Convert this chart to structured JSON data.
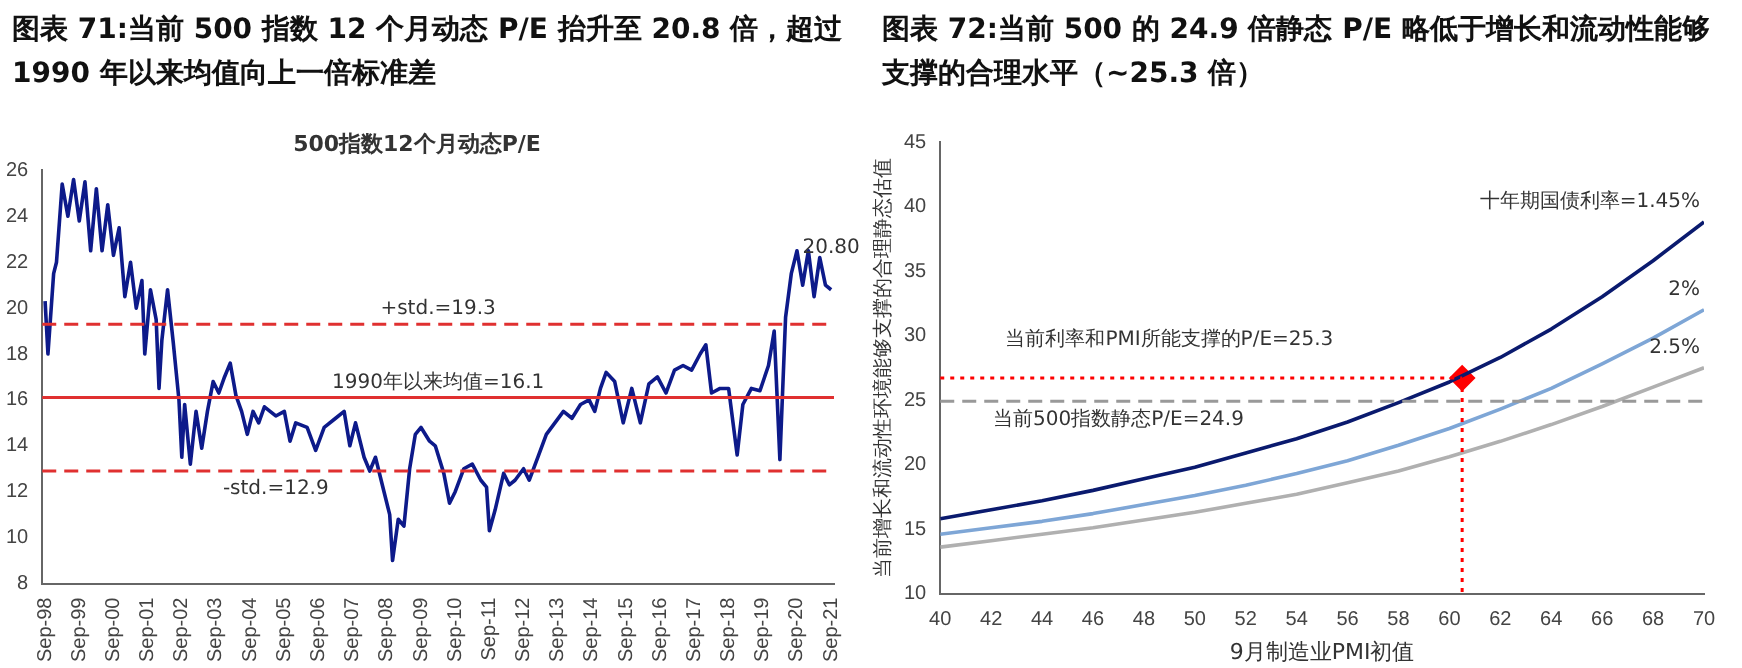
{
  "chart_data": [
    {
      "type": "line",
      "title": "图表 71:当前 500 指数 12 个月动态 P/E 抬升至 20.8 倍，超过 1990 年以来均值向上一倍标准差",
      "subtitle": "500指数12个月动态P/E",
      "xlim": [
        "1998-08",
        "2021-10"
      ],
      "xticks": [
        {
          "value": "1998-09",
          "label": "Sep-98"
        },
        {
          "value": "1999-09",
          "label": "Sep-99"
        },
        {
          "value": "2000-09",
          "label": "Sep-00"
        },
        {
          "value": "2001-09",
          "label": "Sep-01"
        },
        {
          "value": "2002-09",
          "label": "Sep-02"
        },
        {
          "value": "2003-09",
          "label": "Sep-03"
        },
        {
          "value": "2004-09",
          "label": "Sep-04"
        },
        {
          "value": "2005-09",
          "label": "Sep-05"
        },
        {
          "value": "2006-09",
          "label": "Sep-06"
        },
        {
          "value": "2007-09",
          "label": "Sep-07"
        },
        {
          "value": "2008-09",
          "label": "Sep-08"
        },
        {
          "value": "2009-09",
          "label": "Sep-09"
        },
        {
          "value": "2010-09",
          "label": "Sep-10"
        },
        {
          "value": "2011-09",
          "label": "Sep-11"
        },
        {
          "value": "2012-09",
          "label": "Sep-12"
        },
        {
          "value": "2013-09",
          "label": "Sep-13"
        },
        {
          "value": "2014-09",
          "label": "Sep-14"
        },
        {
          "value": "2015-09",
          "label": "Sep-15"
        },
        {
          "value": "2016-09",
          "label": "Sep-16"
        },
        {
          "value": "2017-09",
          "label": "Sep-17"
        },
        {
          "value": "2018-09",
          "label": "Sep-18"
        },
        {
          "value": "2019-09",
          "label": "Sep-19"
        },
        {
          "value": "2020-09",
          "label": "Sep-20"
        },
        {
          "value": "2021-09",
          "label": "Sep-21"
        }
      ],
      "ylim": [
        8,
        26
      ],
      "yticks": [
        8,
        10,
        12,
        14,
        16,
        18,
        20,
        22,
        24,
        26
      ],
      "grid": false,
      "legend": false,
      "marker": "none",
      "line_style": "solid",
      "series": [
        {
          "color": "#0d1a8a",
          "x": [
            "1998-09",
            "1998-10",
            "1998-12",
            "1999-01",
            "1999-03",
            "1999-05",
            "1999-07",
            "1999-09",
            "1999-11",
            "2000-01",
            "2000-03",
            "2000-05",
            "2000-07",
            "2000-09",
            "2000-11",
            "2001-01",
            "2001-03",
            "2001-05",
            "2001-07",
            "2001-08",
            "2001-10",
            "2001-12",
            "2002-01",
            "2002-02",
            "2002-04",
            "2002-06",
            "2002-08",
            "2002-09",
            "2002-10",
            "2002-12",
            "2003-02",
            "2003-04",
            "2003-06",
            "2003-08",
            "2003-10",
            "2003-12",
            "2004-02",
            "2004-04",
            "2004-06",
            "2004-08",
            "2004-10",
            "2004-12",
            "2005-02",
            "2005-06",
            "2005-09",
            "2005-11",
            "2006-01",
            "2006-05",
            "2006-08",
            "2006-11",
            "2007-03",
            "2007-06",
            "2007-08",
            "2007-10",
            "2008-01",
            "2008-03",
            "2008-05",
            "2008-08",
            "2008-10",
            "2008-11",
            "2009-01",
            "2009-03",
            "2009-05",
            "2009-07",
            "2009-09",
            "2009-12",
            "2010-02",
            "2010-05",
            "2010-07",
            "2010-09",
            "2010-12",
            "2011-03",
            "2011-06",
            "2011-08",
            "2011-09",
            "2011-11",
            "2012-02",
            "2012-04",
            "2012-06",
            "2012-09",
            "2012-11",
            "2013-02",
            "2013-05",
            "2013-08",
            "2013-11",
            "2014-02",
            "2014-05",
            "2014-08",
            "2014-10",
            "2014-12",
            "2015-02",
            "2015-05",
            "2015-08",
            "2015-11",
            "2016-02",
            "2016-05",
            "2016-08",
            "2016-11",
            "2017-02",
            "2017-05",
            "2017-08",
            "2017-11",
            "2018-01",
            "2018-03",
            "2018-06",
            "2018-09",
            "2018-12",
            "2019-02",
            "2019-05",
            "2019-08",
            "2019-11",
            "2020-01",
            "2020-03",
            "2020-05",
            "2020-07",
            "2020-09",
            "2020-11",
            "2021-01",
            "2021-03",
            "2021-05",
            "2021-07",
            "2021-09"
          ],
          "values": [
            20.3,
            18.0,
            21.5,
            22.0,
            25.4,
            24.0,
            25.6,
            23.8,
            25.5,
            22.5,
            25.2,
            22.5,
            24.5,
            22.3,
            23.5,
            20.5,
            22.0,
            20.0,
            21.2,
            18.0,
            20.8,
            19.5,
            16.5,
            18.6,
            20.8,
            18.5,
            16.0,
            13.5,
            15.8,
            13.2,
            15.5,
            13.9,
            15.5,
            16.8,
            16.3,
            17.0,
            17.6,
            16.2,
            15.5,
            14.5,
            15.5,
            15.0,
            15.7,
            15.3,
            15.5,
            14.2,
            15.0,
            14.8,
            13.8,
            14.8,
            15.2,
            15.5,
            14.0,
            15.0,
            13.5,
            12.9,
            13.5,
            12.0,
            11.0,
            9.0,
            10.8,
            10.5,
            13.0,
            14.5,
            14.8,
            14.2,
            14.0,
            12.8,
            11.5,
            12.0,
            13.0,
            13.2,
            12.5,
            12.2,
            10.3,
            11.2,
            12.8,
            12.3,
            12.5,
            13.0,
            12.5,
            13.5,
            14.5,
            15.0,
            15.5,
            15.2,
            15.8,
            16.0,
            15.5,
            16.5,
            17.2,
            16.8,
            15.0,
            16.5,
            15.0,
            16.7,
            17.0,
            16.3,
            17.3,
            17.5,
            17.3,
            18.0,
            18.4,
            16.3,
            16.5,
            16.5,
            13.6,
            15.8,
            16.5,
            16.4,
            17.5,
            19.0,
            13.4,
            19.6,
            21.5,
            22.5,
            21.0,
            22.5,
            20.5,
            22.2,
            21.0,
            20.8
          ]
        }
      ],
      "ref_lines": [
        {
          "axis": "y",
          "value": 19.3,
          "color": "#e03030",
          "line_style": "dashed",
          "label": "+std.=19.3"
        },
        {
          "axis": "y",
          "value": 16.1,
          "color": "#e03030",
          "line_style": "solid",
          "label": "1990年以来均值=16.1"
        },
        {
          "axis": "y",
          "value": 12.9,
          "color": "#e03030",
          "line_style": "dashed"
        }
      ],
      "annotations": [
        {
          "text": "20.80",
          "x": "2021-09",
          "y": 20.8
        },
        {
          "text": "-std.=12.9",
          "x": "2005-06",
          "y": 12.9
        }
      ]
    },
    {
      "type": "line",
      "title": "图表 72:当前 500 的 24.9 倍静态 P/E 略低于增长和流动性能够支撑的合理水平（~25.3 倍）",
      "xlabel": "9月制造业PMI初值",
      "ylabel": "当前增长和流动性环境能够支撑的合理静态估值",
      "xlim": [
        40,
        70
      ],
      "xticks": [
        40,
        42,
        44,
        46,
        48,
        50,
        52,
        54,
        56,
        58,
        60,
        62,
        64,
        66,
        68,
        70
      ],
      "ylim": [
        10,
        45
      ],
      "yticks": [
        10,
        15,
        20,
        25,
        30,
        35,
        40,
        45
      ],
      "grid": false,
      "legend": false,
      "marker": "none",
      "line_style": "solid",
      "x": [
        40,
        42,
        44,
        46,
        48,
        50,
        52,
        54,
        56,
        58,
        60,
        62,
        64,
        66,
        68,
        70
      ],
      "series": [
        {
          "name": "十年期国债利率=1.45%",
          "color": "#0a1a6e",
          "values": [
            15.8,
            16.5,
            17.2,
            18.0,
            18.9,
            19.8,
            20.9,
            22.0,
            23.3,
            24.8,
            26.4,
            28.3,
            30.5,
            33.0,
            35.8,
            38.8
          ]
        },
        {
          "name": "2%",
          "color": "#7ea6d6",
          "values": [
            14.6,
            15.1,
            15.6,
            16.2,
            16.9,
            17.6,
            18.4,
            19.3,
            20.3,
            21.5,
            22.8,
            24.3,
            25.9,
            27.8,
            29.8,
            32.0
          ]
        },
        {
          "name": "2.5%",
          "color": "#b0b0b0",
          "values": [
            13.6,
            14.1,
            14.6,
            15.1,
            15.7,
            16.3,
            17.0,
            17.7,
            18.6,
            19.5,
            20.6,
            21.8,
            23.1,
            24.5,
            26.0,
            27.5
          ]
        },
        {
          "type": "scatter",
          "color": "#ff0000",
          "marker": "diamond",
          "x": [
            60.5
          ],
          "values": [
            26.7
          ]
        }
      ],
      "ref_lines": [
        {
          "axis": "y",
          "value": 24.9,
          "color": "#999999",
          "line_style": "dashed"
        },
        {
          "axis": "y",
          "value": 26.7,
          "color": "#ff0000",
          "line_style": "dotted"
        },
        {
          "axis": "x",
          "value": 60.5,
          "color": "#ff0000",
          "line_style": "dotted"
        }
      ],
      "annotations": [
        "当前利率和PMI所能支撑的P/E=25.3",
        {
          "text": "当前500指数静态P/E=24.9",
          "x": 47,
          "y": 24.9
        }
      ]
    }
  ]
}
